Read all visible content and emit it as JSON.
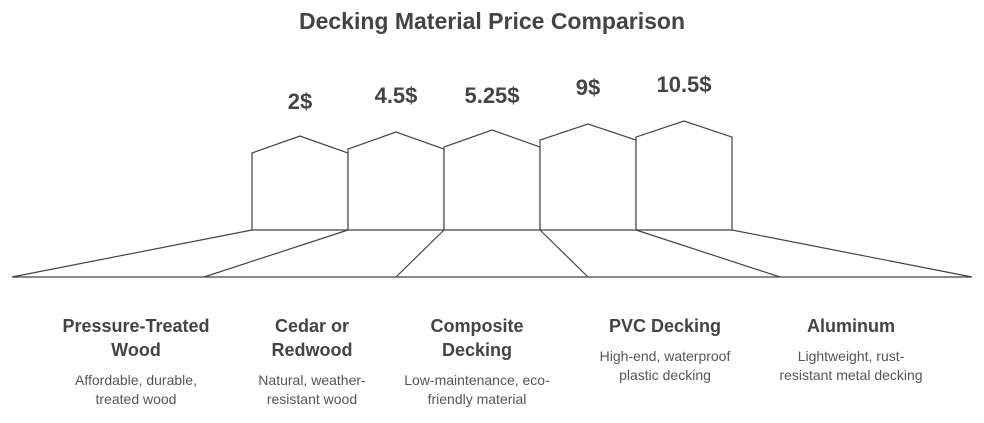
{
  "title": "Decking Material Price Comparison",
  "materials": [
    {
      "name_lines": [
        "Pressure-Treated",
        "Wood"
      ],
      "price": "2$",
      "description_lines": [
        "Affordable, durable,",
        "treated wood"
      ]
    },
    {
      "name_lines": [
        "Cedar or",
        "Redwood"
      ],
      "price": "4.5$",
      "description_lines": [
        "Natural, weather-",
        "resistant wood"
      ]
    },
    {
      "name_lines": [
        "Composite",
        "Decking"
      ],
      "price": "5.25$",
      "description_lines": [
        "Low-maintenance, eco-",
        "friendly material"
      ]
    },
    {
      "name_lines": [
        "PVC Decking"
      ],
      "price": "9$",
      "description_lines": [
        "High-end, waterproof",
        "plastic decking"
      ]
    },
    {
      "name_lines": [
        "Aluminum"
      ],
      "price": "10.5$",
      "description_lines": [
        "Lightweight, rust-",
        "resistant metal decking"
      ]
    }
  ]
}
